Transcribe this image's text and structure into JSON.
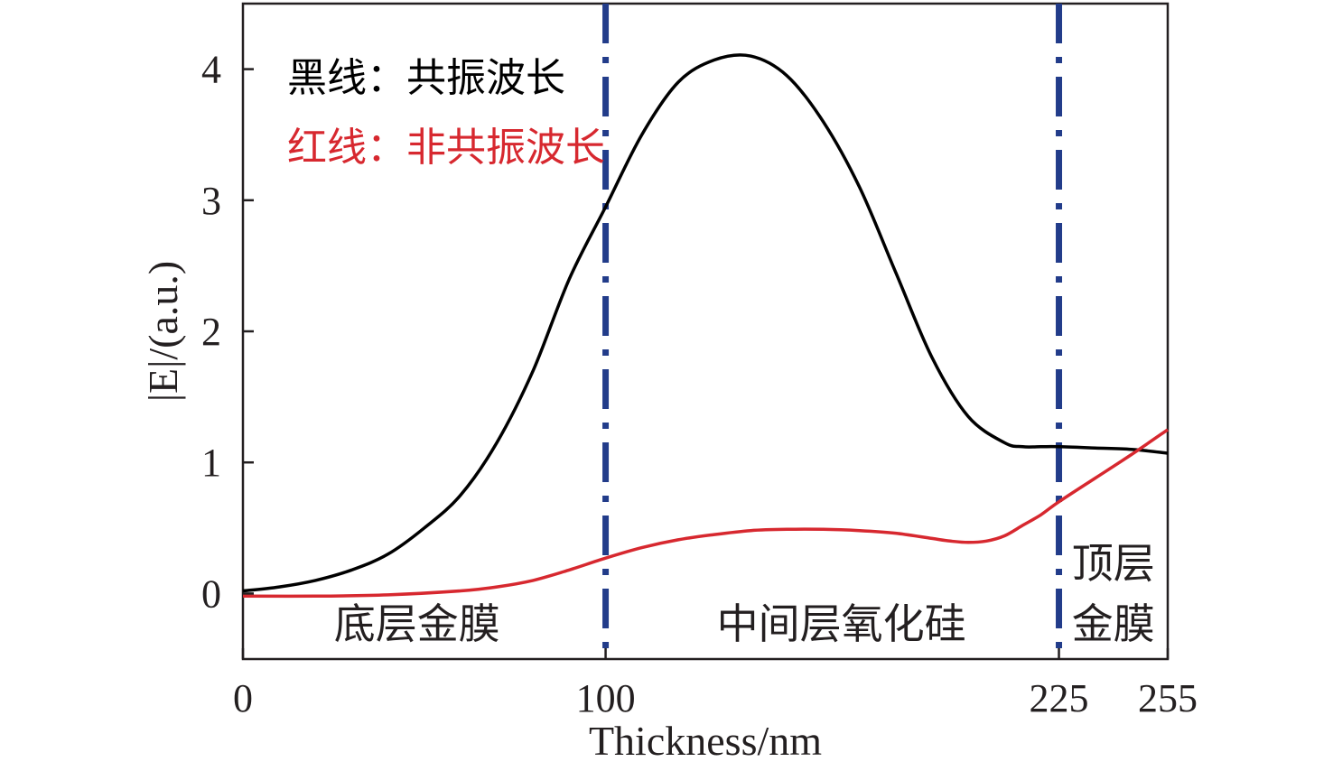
{
  "chart_data": {
    "type": "line",
    "xlabel": "Thickness/nm",
    "ylabel": "|E|/(a.u.)",
    "xlim": [
      0,
      255
    ],
    "ylim": [
      -0.5,
      4.5
    ],
    "x_ticks": [
      0,
      100,
      225,
      255
    ],
    "x_tick_labels": [
      "0",
      "100",
      "225",
      "255"
    ],
    "y_ticks": [
      0,
      1,
      2,
      3,
      4
    ],
    "y_tick_labels": [
      "0",
      "1",
      "2",
      "3",
      "4"
    ],
    "grid": false,
    "legend_position": "top-left",
    "legend": [
      {
        "label": "黑线：共振波长",
        "color": "#000000"
      },
      {
        "label": "红线：非共振波长",
        "color": "#d7282f"
      }
    ],
    "boundaries": [
      {
        "x": 100,
        "color": "#223c8a",
        "style": "dash-dot"
      },
      {
        "x": 225,
        "color": "#223c8a",
        "style": "dash-dot"
      }
    ],
    "region_labels": [
      {
        "lines": [
          "底层金膜"
        ],
        "x_center": 48
      },
      {
        "lines": [
          "中间层氧化硅"
        ],
        "x_center": 165
      },
      {
        "lines": [
          "顶层",
          "金膜"
        ],
        "x_center": 240
      }
    ],
    "series": [
      {
        "color": "#000000",
        "x": [
          0,
          10,
          20,
          30,
          40,
          50,
          60,
          70,
          80,
          90,
          100,
          110,
          120,
          130,
          140,
          150,
          160,
          170,
          180,
          190,
          200,
          210,
          215,
          220,
          225,
          235,
          245,
          255
        ],
        "y": [
          0.02,
          0.05,
          0.1,
          0.18,
          0.3,
          0.5,
          0.75,
          1.15,
          1.7,
          2.4,
          2.95,
          3.5,
          3.9,
          4.07,
          4.1,
          3.95,
          3.6,
          3.1,
          2.45,
          1.8,
          1.35,
          1.15,
          1.12,
          1.12,
          1.12,
          1.11,
          1.1,
          1.07
        ]
      },
      {
        "color": "#d7282f",
        "x": [
          0,
          20,
          40,
          60,
          70,
          80,
          90,
          100,
          110,
          120,
          130,
          140,
          150,
          160,
          170,
          180,
          190,
          195,
          200,
          205,
          210,
          215,
          220,
          225,
          235,
          245,
          255
        ],
        "y": [
          -0.02,
          -0.02,
          -0.01,
          0.02,
          0.05,
          0.1,
          0.18,
          0.27,
          0.35,
          0.41,
          0.45,
          0.48,
          0.49,
          0.49,
          0.48,
          0.46,
          0.42,
          0.4,
          0.39,
          0.4,
          0.44,
          0.52,
          0.6,
          0.7,
          0.88,
          1.06,
          1.25
        ]
      }
    ]
  }
}
